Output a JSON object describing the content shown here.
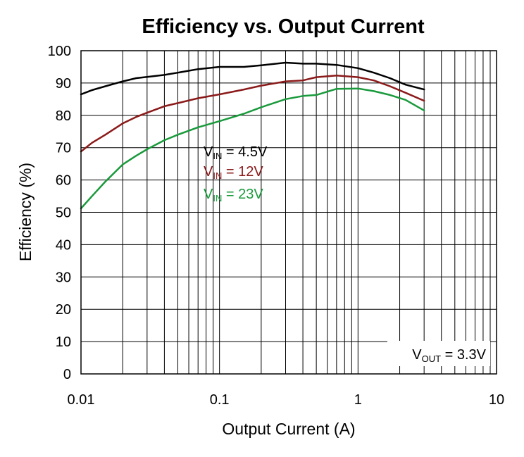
{
  "chart_data": {
    "type": "line",
    "title": "Efficiency vs. Output Current",
    "xlabel": "Output Current (A)",
    "ylabel": "Efficiency (%)",
    "xscale": "log",
    "xlim": [
      0.01,
      10
    ],
    "ylim": [
      0,
      100
    ],
    "x_ticks": [
      {
        "value": 0.01,
        "label": "0.01"
      },
      {
        "value": 0.1,
        "label": "0.1"
      },
      {
        "value": 1,
        "label": "1"
      },
      {
        "value": 10,
        "label": "10"
      }
    ],
    "y_ticks": [
      0,
      10,
      20,
      30,
      40,
      50,
      60,
      70,
      80,
      90,
      100
    ],
    "grid": true,
    "legend": {
      "placement": "center-left",
      "entries": [
        {
          "main": "V",
          "sub": "IN",
          "rest": " = 4.5V",
          "color": "#000000"
        },
        {
          "main": "V",
          "sub": "IN",
          "rest": " = 12V",
          "color": "#8b1a1a"
        },
        {
          "main": "V",
          "sub": "IN",
          "rest": " = 23V",
          "color": "#1a9a3c"
        }
      ]
    },
    "annotation": {
      "main": "V",
      "sub": "OUT",
      "rest": " = 3.3V"
    },
    "series": [
      {
        "color": "#000000",
        "x": [
          0.01,
          0.012,
          0.015,
          0.02,
          0.025,
          0.03,
          0.04,
          0.05,
          0.07,
          0.1,
          0.15,
          0.2,
          0.3,
          0.4,
          0.5,
          0.7,
          1.0,
          1.3,
          1.7,
          2.2,
          3.0
        ],
        "y": [
          86.5,
          87.8,
          89.0,
          90.5,
          91.5,
          91.9,
          92.5,
          93.2,
          94.3,
          95.0,
          95.0,
          95.5,
          96.3,
          96.0,
          96.0,
          95.6,
          94.6,
          93.2,
          91.5,
          89.5,
          88.0
        ]
      },
      {
        "color": "#8b1a1a",
        "x": [
          0.01,
          0.012,
          0.015,
          0.02,
          0.025,
          0.03,
          0.04,
          0.05,
          0.07,
          0.1,
          0.15,
          0.2,
          0.3,
          0.4,
          0.5,
          0.7,
          1.0,
          1.3,
          1.7,
          2.2,
          3.0
        ],
        "y": [
          68.8,
          71.5,
          74.0,
          77.5,
          79.5,
          80.8,
          82.8,
          83.8,
          85.3,
          86.5,
          88.0,
          89.2,
          90.5,
          90.8,
          91.8,
          92.3,
          91.8,
          90.8,
          89.0,
          87.0,
          84.5
        ]
      },
      {
        "color": "#1a9a3c",
        "x": [
          0.01,
          0.012,
          0.015,
          0.02,
          0.025,
          0.03,
          0.04,
          0.05,
          0.07,
          0.1,
          0.15,
          0.2,
          0.3,
          0.4,
          0.5,
          0.7,
          1.0,
          1.3,
          1.7,
          2.2,
          3.0
        ],
        "y": [
          51.2,
          55.0,
          59.5,
          64.8,
          67.5,
          69.5,
          72.3,
          74.0,
          76.3,
          78.2,
          80.5,
          82.5,
          85.0,
          86.0,
          86.3,
          88.2,
          88.3,
          87.5,
          86.3,
          84.8,
          81.5
        ]
      }
    ]
  }
}
